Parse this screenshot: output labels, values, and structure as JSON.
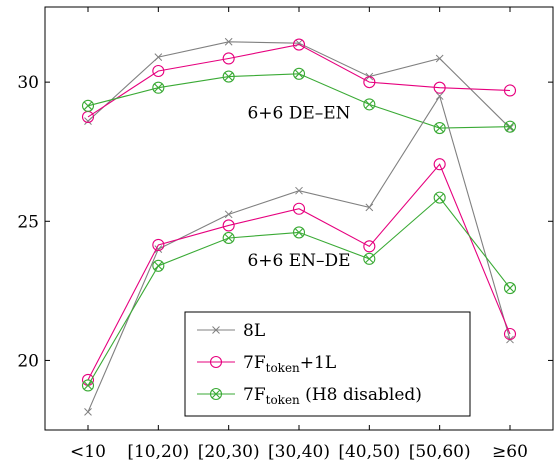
{
  "chart_data": {
    "type": "line",
    "categories": [
      "<10",
      "[10,20)",
      "[20,30)",
      "[30,40)",
      "[40,50)",
      "[50,60)",
      "≥60"
    ],
    "ylim": [
      17.5,
      32.7
    ],
    "yticks": [
      20,
      25,
      30
    ],
    "title": "",
    "xlabel": "",
    "ylabel": "",
    "grid": false,
    "legend_position": "bottom-right",
    "legend": [
      {
        "series": "8L",
        "label": "8L",
        "sub": "",
        "suffix": ""
      },
      {
        "series": "7F",
        "label": "7F",
        "sub": "token",
        "suffix": "+1L"
      },
      {
        "series": "H8",
        "label": "7F",
        "sub": "token",
        "suffix": " (H8 disabled)"
      }
    ],
    "annotations": [
      {
        "text": "6+6 DE–EN",
        "x": 3,
        "y": 28.7
      },
      {
        "text": "6+6 EN–DE",
        "x": 3,
        "y": 23.4
      }
    ],
    "series": [
      {
        "id": "8L",
        "group": "DE–EN",
        "color": "#808080",
        "marker": "x",
        "values": [
          28.6,
          30.9,
          31.45,
          31.4,
          30.2,
          30.85,
          28.35
        ]
      },
      {
        "id": "7F",
        "group": "DE–EN",
        "color": "#e6007e",
        "marker": "circle",
        "values": [
          28.75,
          30.4,
          30.85,
          31.35,
          30.0,
          29.8,
          29.7
        ]
      },
      {
        "id": "H8",
        "group": "DE–EN",
        "color": "#3aaa35",
        "marker": "otimes",
        "values": [
          29.15,
          29.8,
          30.2,
          30.3,
          29.2,
          28.35,
          28.4
        ]
      },
      {
        "id": "8L",
        "group": "EN–DE",
        "color": "#808080",
        "marker": "x",
        "values": [
          18.15,
          24.0,
          25.25,
          26.1,
          25.5,
          29.5,
          20.75
        ]
      },
      {
        "id": "7F",
        "group": "EN–DE",
        "color": "#e6007e",
        "marker": "circle",
        "values": [
          19.3,
          24.15,
          24.85,
          25.45,
          24.1,
          27.05,
          20.95
        ]
      },
      {
        "id": "H8",
        "group": "EN–DE",
        "color": "#3aaa35",
        "marker": "otimes",
        "values": [
          19.1,
          23.4,
          24.4,
          24.6,
          23.65,
          25.85,
          22.6
        ]
      }
    ]
  }
}
